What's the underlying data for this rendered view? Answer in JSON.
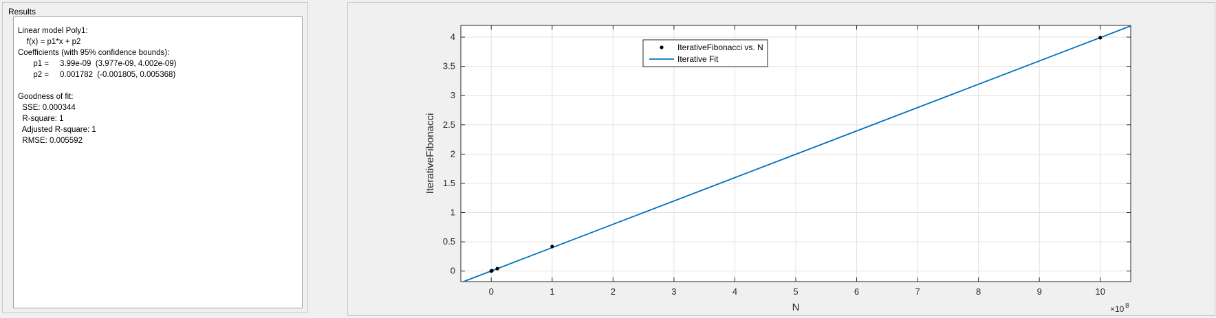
{
  "results": {
    "title": "Results",
    "lines": [
      "Linear model Poly1:",
      "    f(x) = p1*x + p2",
      "Coefficients (with 95% confidence bounds):",
      "       p1 =     3.99e-09  (3.977e-09, 4.002e-09)",
      "       p2 =     0.001782  (-0.001805, 0.005368)",
      "",
      "Goodness of fit:",
      "  SSE: 0.000344",
      "  R-square: 1",
      "  Adjusted R-square: 1",
      "  RMSE: 0.005592"
    ]
  },
  "chart_data": {
    "type": "scatter",
    "xlabel": "N",
    "ylabel": "IterativeFibonacci",
    "x_exponent_label": "×10",
    "x_exponent": "8",
    "xlim": [
      -0.5,
      10.5
    ],
    "ylim": [
      -0.18,
      4.2
    ],
    "xticks": [
      0,
      1,
      2,
      3,
      4,
      5,
      6,
      7,
      8,
      9,
      10
    ],
    "yticks": [
      0,
      0.5,
      1,
      1.5,
      2,
      2.5,
      3,
      3.5,
      4
    ],
    "grid": true,
    "legend_position": "top",
    "series": [
      {
        "name": "IterativeFibonacci vs. N",
        "kind": "points",
        "color": "#000000",
        "x": [
          0,
          0.01,
          0.1,
          1,
          10
        ],
        "y": [
          0.0018,
          0.006,
          0.042,
          0.42,
          3.99
        ]
      },
      {
        "name": "Iterative Fit",
        "kind": "line",
        "color": "#0072bd",
        "slope": 0.399,
        "intercept": 0.001782
      }
    ]
  }
}
